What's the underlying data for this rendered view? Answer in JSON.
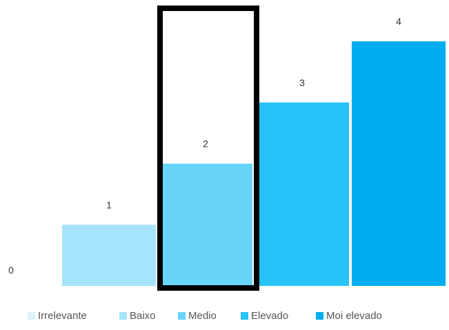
{
  "chart_data": {
    "type": "bar",
    "categories": [
      "Irrelevante",
      "Baixo",
      "Medio",
      "Elevado",
      "Moi elevado"
    ],
    "values": [
      0,
      1,
      2,
      3,
      4
    ],
    "data_labels": [
      "0",
      "1",
      "2",
      "3",
      "4"
    ],
    "title": "",
    "xlabel": "",
    "ylabel": "",
    "ylim": [
      0,
      4
    ],
    "grid": false,
    "legend": {
      "position": "bottom",
      "entries": [
        {
          "label": "Irrelevante",
          "color": "#DDF3FC"
        },
        {
          "label": "Baixo",
          "color": "#A6E4FB"
        },
        {
          "label": "Medio",
          "color": "#68D4FA"
        },
        {
          "label": "Elevado",
          "color": "#27C3F8"
        },
        {
          "label": "Moi elevado",
          "color": "#00ADEF"
        }
      ]
    },
    "highlight": {
      "category": "Medio",
      "style": "black rectangle outline"
    }
  }
}
